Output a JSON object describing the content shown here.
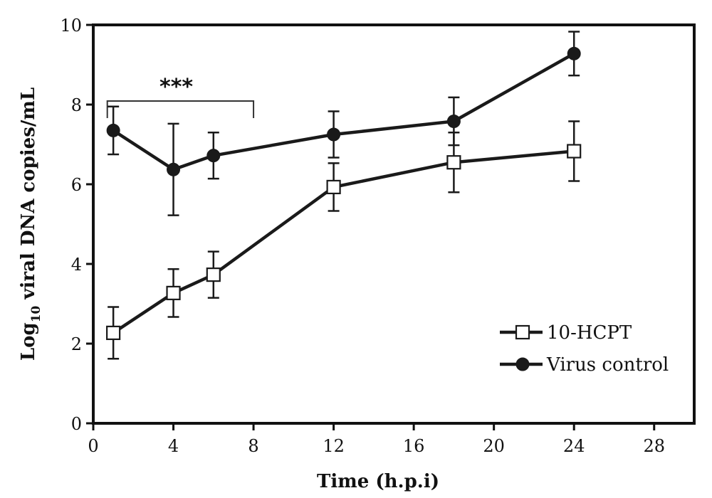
{
  "chart_data": {
    "type": "line",
    "xlabel": "Time (h.p.i)",
    "ylabel_main": "Log",
    "ylabel_sub": "10",
    "ylabel_rest": " viral DNA copies/mL",
    "xlim": [
      0,
      30
    ],
    "ylim": [
      0,
      10
    ],
    "x_ticks": [
      0,
      4,
      8,
      12,
      16,
      20,
      24,
      28
    ],
    "y_ticks": [
      0,
      2,
      4,
      6,
      8,
      10
    ],
    "grid": false,
    "legend_position": "bottom-right",
    "series": [
      {
        "name": "10-HCPT",
        "marker": "open-square",
        "color": "#1a1a1a",
        "x": [
          1,
          4,
          6,
          12,
          18,
          24
        ],
        "y": [
          2.27,
          3.27,
          3.73,
          5.93,
          6.55,
          6.83
        ],
        "err": [
          0.65,
          0.6,
          0.58,
          0.6,
          0.75,
          0.75
        ]
      },
      {
        "name": "Virus control",
        "marker": "filled-circle",
        "color": "#1a1a1a",
        "x": [
          1,
          4,
          6,
          12,
          18,
          24
        ],
        "y": [
          7.35,
          6.37,
          6.72,
          7.25,
          7.58,
          9.28
        ],
        "err": [
          0.6,
          1.15,
          0.58,
          0.58,
          0.6,
          0.55
        ]
      }
    ],
    "annotation": {
      "text": "***",
      "x_start": 0.7,
      "x_end": 8
    }
  }
}
